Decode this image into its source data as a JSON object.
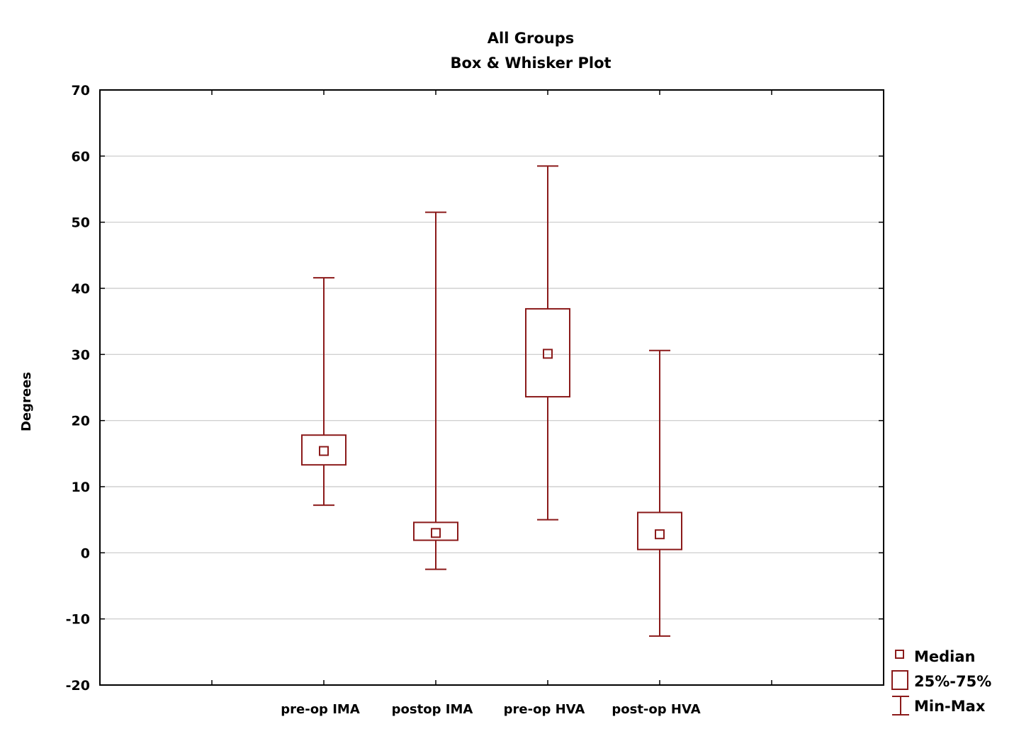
{
  "chart_data": {
    "type": "boxplot",
    "title": "All Groups",
    "subtitle": "Box & Whisker Plot",
    "ylabel": "Degrees",
    "xlabel": "",
    "ylim": [
      -20,
      70
    ],
    "yticks": [
      -20,
      -10,
      0,
      10,
      20,
      30,
      40,
      50,
      60,
      70
    ],
    "grid": true,
    "color": "#8b1a1a",
    "legend_position": "bottom-right, outside plot",
    "legend": {
      "median": "Median",
      "box": "25%-75%",
      "whisker": "Min-Max"
    },
    "categories": [
      "pre-op IMA",
      "postop IMA",
      "pre-op HVA",
      "post-op HVA"
    ],
    "series": [
      {
        "category": "pre-op IMA",
        "min": 7.2,
        "q1": 13.3,
        "median": 15.4,
        "q3": 17.8,
        "max": 41.6
      },
      {
        "category": "postop IMA",
        "min": -2.5,
        "q1": 1.9,
        "median": 3.0,
        "q3": 4.6,
        "max": 51.5
      },
      {
        "category": "pre-op HVA",
        "min": 5.0,
        "q1": 23.6,
        "median": 30.1,
        "q3": 36.9,
        "max": 58.5
      },
      {
        "category": "post-op HVA",
        "min": -12.6,
        "q1": 0.5,
        "median": 2.8,
        "q3": 6.1,
        "max": 30.6
      }
    ]
  }
}
